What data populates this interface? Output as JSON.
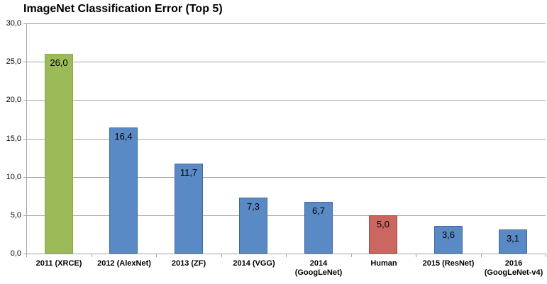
{
  "chart_data": {
    "type": "bar",
    "title": "ImageNet Classification Error (Top 5)",
    "categories": [
      "2011 (XRCE)",
      "2012 (AlexNet)",
      "2013 (ZF)",
      "2014 (VGG)",
      "2014\n(GoogLeNet)",
      "Human",
      "2015 (ResNet)",
      "2016\n(GoogLeNet-v4)"
    ],
    "values": [
      26.0,
      16.4,
      11.7,
      7.3,
      6.7,
      5.0,
      3.6,
      3.1
    ],
    "value_labels": [
      "26,0",
      "16,4",
      "11,7",
      "7,3",
      "6,7",
      "5,0",
      "3,6",
      "3,1"
    ],
    "bar_colors": [
      "#9bbb59",
      "#5a8ac6",
      "#5a8ac6",
      "#5a8ac6",
      "#5a8ac6",
      "#cc6661",
      "#5a8ac6",
      "#5a8ac6"
    ],
    "bar_border_colors": [
      "#8aa64e",
      "#3e6a9e",
      "#3e6a9e",
      "#3e6a9e",
      "#3e6a9e",
      "#9e4844",
      "#3e6a9e",
      "#3e6a9e"
    ],
    "bar_textures": [
      "dots",
      "none",
      "none",
      "none",
      "none",
      "none",
      "none",
      "none"
    ],
    "xlabel": "",
    "ylabel": "",
    "ylim": [
      0,
      30
    ],
    "ytick_labels": [
      "30,0",
      "25,0",
      "20,0",
      "15,0",
      "10,0",
      "5,0",
      "0,0"
    ],
    "grid": true,
    "legend": "none",
    "decimal_separator": ","
  },
  "colors": {
    "gridline": "#a6a6a6",
    "axis": "#a6a6a6",
    "tick": "#a6a6a6",
    "text": "#000000",
    "background": "#ffffff",
    "highlight_first_bar": "#9bbb59",
    "default_bar": "#5a8ac6",
    "human_bar": "#cc6661"
  }
}
